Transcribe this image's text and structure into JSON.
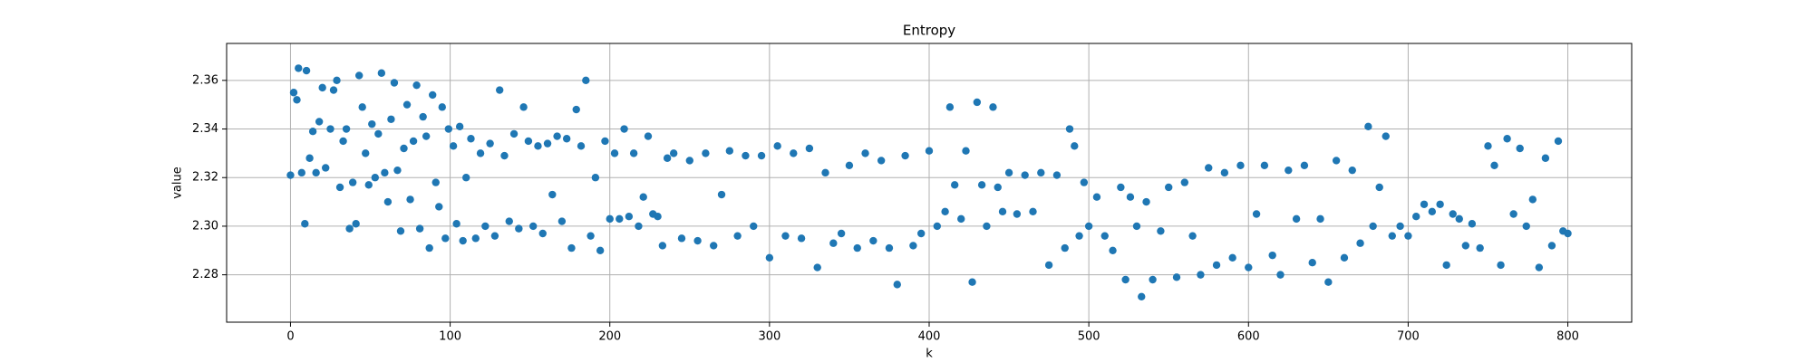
{
  "chart_data": {
    "type": "scatter",
    "title": "Entropy",
    "x_label": "k",
    "y_label": "value",
    "color": "#1f77b4",
    "grid": true,
    "xlim": [
      -40,
      840
    ],
    "xticks": [
      0,
      100,
      200,
      300,
      400,
      500,
      600,
      700,
      800
    ],
    "ylim": [
      2.2605,
      2.3752
    ],
    "yticks": [
      2.28,
      {
        "value": 2.3,
        "label": "2.30"
      },
      2.32,
      2.34,
      2.36
    ],
    "x": [
      0,
      2,
      4,
      5,
      7,
      9,
      10,
      12,
      14,
      16,
      18,
      20,
      22,
      25,
      27,
      29,
      31,
      33,
      35,
      37,
      39,
      41,
      43,
      45,
      47,
      49,
      51,
      53,
      55,
      57,
      59,
      61,
      63,
      65,
      67,
      69,
      71,
      73,
      75,
      77,
      79,
      81,
      83,
      85,
      87,
      89,
      91,
      93,
      95,
      97,
      99,
      102,
      104,
      106,
      108,
      110,
      113,
      116,
      119,
      122,
      125,
      128,
      131,
      134,
      137,
      140,
      143,
      146,
      149,
      152,
      155,
      158,
      161,
      164,
      167,
      170,
      173,
      176,
      179,
      182,
      185,
      188,
      191,
      194,
      197,
      200,
      203,
      206,
      209,
      212,
      215,
      218,
      221,
      224,
      227,
      230,
      233,
      236,
      240,
      245,
      250,
      255,
      260,
      265,
      270,
      275,
      280,
      285,
      290,
      295,
      300,
      305,
      310,
      315,
      320,
      325,
      330,
      335,
      340,
      345,
      350,
      355,
      360,
      365,
      370,
      375,
      380,
      385,
      390,
      395,
      400,
      405,
      410,
      413,
      416,
      420,
      423,
      427,
      430,
      433,
      436,
      440,
      443,
      446,
      450,
      455,
      460,
      465,
      470,
      475,
      480,
      485,
      488,
      491,
      494,
      497,
      500,
      505,
      510,
      515,
      520,
      523,
      526,
      530,
      533,
      536,
      540,
      545,
      550,
      555,
      560,
      565,
      570,
      575,
      580,
      585,
      590,
      595,
      600,
      605,
      610,
      615,
      620,
      625,
      630,
      635,
      640,
      645,
      650,
      655,
      660,
      665,
      670,
      675,
      678,
      682,
      686,
      690,
      695,
      700,
      705,
      710,
      715,
      720,
      724,
      728,
      732,
      736,
      740,
      745,
      750,
      754,
      758,
      762,
      766,
      770,
      774,
      778,
      782,
      786,
      790,
      794,
      797,
      800
    ],
    "y": [
      2.321,
      2.355,
      2.352,
      2.365,
      2.322,
      2.301,
      2.364,
      2.328,
      2.339,
      2.322,
      2.343,
      2.357,
      2.324,
      2.34,
      2.356,
      2.36,
      2.316,
      2.335,
      2.34,
      2.299,
      2.318,
      2.301,
      2.362,
      2.349,
      2.33,
      2.317,
      2.342,
      2.32,
      2.338,
      2.363,
      2.322,
      2.31,
      2.344,
      2.359,
      2.323,
      2.298,
      2.332,
      2.35,
      2.311,
      2.335,
      2.358,
      2.299,
      2.345,
      2.337,
      2.291,
      2.354,
      2.318,
      2.308,
      2.349,
      2.295,
      2.34,
      2.333,
      2.301,
      2.341,
      2.294,
      2.32,
      2.336,
      2.295,
      2.33,
      2.3,
      2.334,
      2.296,
      2.356,
      2.329,
      2.302,
      2.338,
      2.299,
      2.349,
      2.335,
      2.3,
      2.333,
      2.297,
      2.334,
      2.313,
      2.337,
      2.302,
      2.336,
      2.291,
      2.348,
      2.333,
      2.36,
      2.296,
      2.32,
      2.29,
      2.335,
      2.303,
      2.33,
      2.303,
      2.34,
      2.304,
      2.33,
      2.3,
      2.312,
      2.337,
      2.305,
      2.304,
      2.292,
      2.328,
      2.33,
      2.295,
      2.327,
      2.294,
      2.33,
      2.292,
      2.313,
      2.331,
      2.296,
      2.329,
      2.3,
      2.329,
      2.287,
      2.333,
      2.296,
      2.33,
      2.295,
      2.332,
      2.283,
      2.322,
      2.293,
      2.297,
      2.325,
      2.291,
      2.33,
      2.294,
      2.327,
      2.291,
      2.276,
      2.329,
      2.292,
      2.297,
      2.331,
      2.3,
      2.306,
      2.349,
      2.317,
      2.303,
      2.331,
      2.277,
      2.351,
      2.317,
      2.3,
      2.349,
      2.316,
      2.306,
      2.322,
      2.305,
      2.321,
      2.306,
      2.322,
      2.284,
      2.321,
      2.291,
      2.34,
      2.333,
      2.296,
      2.318,
      2.3,
      2.312,
      2.296,
      2.29,
      2.316,
      2.278,
      2.312,
      2.3,
      2.271,
      2.31,
      2.278,
      2.298,
      2.316,
      2.279,
      2.318,
      2.296,
      2.28,
      2.324,
      2.284,
      2.322,
      2.287,
      2.325,
      2.283,
      2.305,
      2.325,
      2.288,
      2.28,
      2.323,
      2.303,
      2.325,
      2.285,
      2.303,
      2.277,
      2.327,
      2.287,
      2.323,
      2.293,
      2.341,
      2.3,
      2.316,
      2.337,
      2.296,
      2.3,
      2.296,
      2.304,
      2.309,
      2.306,
      2.309,
      2.284,
      2.305,
      2.303,
      2.292,
      2.301,
      2.291,
      2.333,
      2.325,
      2.284,
      2.336,
      2.305,
      2.332,
      2.3,
      2.311,
      2.283,
      2.328,
      2.292,
      2.335,
      2.298,
      2.297
    ]
  }
}
